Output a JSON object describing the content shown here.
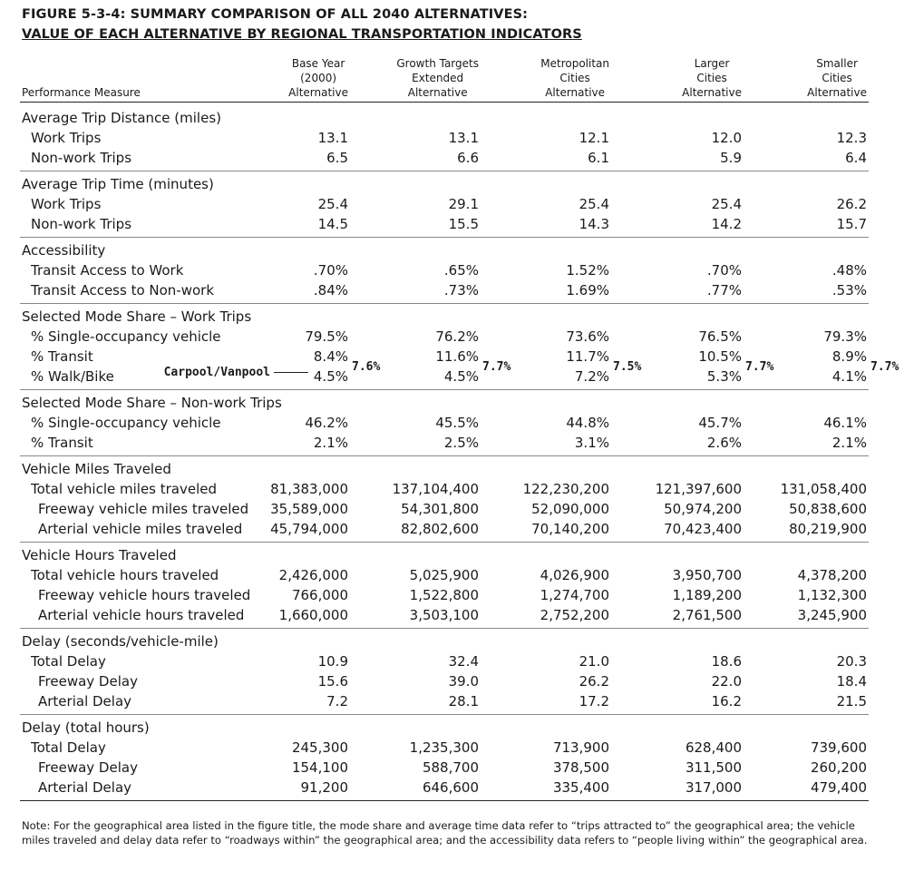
{
  "header": {
    "title_lines": [
      "FIGURE 5-3-4: SUMMARY COMPARISON OF ALL 2040 ALTERNATIVES:",
      "VALUE OF EACH ALTERNATIVE BY REGIONAL TRANSPORTATION INDICATORS"
    ]
  },
  "table": {
    "measure_header": "Performance Measure",
    "columns": [
      [
        "Base Year",
        "(2000)",
        "Alternative"
      ],
      [
        "Growth Targets",
        "Extended",
        "Alternative"
      ],
      [
        "Metropolitan",
        "Cities",
        "Alternative"
      ],
      [
        "Larger",
        "Cities",
        "Alternative"
      ],
      [
        "Smaller",
        "Cities",
        "Alternative"
      ]
    ],
    "sections": [
      {
        "heading": "Average Trip Distance (miles)",
        "rows": [
          {
            "label": "Work Trips",
            "values": [
              "13.1",
              "13.1",
              "12.1",
              "12.0",
              "12.3"
            ]
          },
          {
            "label": "Non-work Trips",
            "values": [
              "6.5",
              "6.6",
              "6.1",
              "5.9",
              "6.4"
            ]
          }
        ]
      },
      {
        "heading": "Average Trip Time (minutes)",
        "rows": [
          {
            "label": "Work Trips",
            "values": [
              "25.4",
              "29.1",
              "25.4",
              "25.4",
              "26.2"
            ]
          },
          {
            "label": "Non-work Trips",
            "values": [
              "14.5",
              "15.5",
              "14.3",
              "14.2",
              "15.7"
            ]
          }
        ]
      },
      {
        "heading": "Accessibility",
        "rows": [
          {
            "label": "Transit Access to Work",
            "values": [
              ".70%",
              ".65%",
              "1.52%",
              ".70%",
              ".48%"
            ]
          },
          {
            "label": "Transit Access to Non-work",
            "values": [
              ".84%",
              ".73%",
              "1.69%",
              ".77%",
              ".53%"
            ]
          }
        ]
      },
      {
        "heading": "Selected Mode Share – Work Trips",
        "rows": [
          {
            "label": "% Single-occupancy vehicle",
            "values": [
              "79.5%",
              "76.2%",
              "73.6%",
              "76.5%",
              "79.3%"
            ]
          },
          {
            "label": "% Transit",
            "values": [
              "8.4%",
              "11.6%",
              "11.7%",
              "10.5%",
              "8.9%"
            ]
          },
          {
            "label": "% Walk/Bike",
            "values": [
              "4.5%",
              "4.5%",
              "7.2%",
              "5.3%",
              "4.1%"
            ]
          }
        ],
        "annotation": {
          "label": "Carpool/Vanpool",
          "values": [
            "7.6%",
            "7.7%",
            "7.5%",
            "7.7%",
            "7.7%"
          ]
        }
      },
      {
        "heading": "Selected Mode Share – Non-work Trips",
        "rows": [
          {
            "label": "% Single-occupancy vehicle",
            "values": [
              "46.2%",
              "45.5%",
              "44.8%",
              "45.7%",
              "46.1%"
            ]
          },
          {
            "label": "% Transit",
            "values": [
              "2.1%",
              "2.5%",
              "3.1%",
              "2.6%",
              "2.1%"
            ]
          }
        ]
      },
      {
        "heading": "Vehicle Miles Traveled",
        "rows": [
          {
            "label": "Total vehicle miles traveled",
            "values": [
              "81,383,000",
              "137,104,400",
              "122,230,200",
              "121,397,600",
              "131,058,400"
            ]
          },
          {
            "label": "Freeway vehicle miles traveled",
            "values": [
              "35,589,000",
              "54,301,800",
              "52,090,000",
              "50,974,200",
              "50,838,600"
            ]
          },
          {
            "label": "Arterial vehicle miles traveled",
            "values": [
              "45,794,000",
              "82,802,600",
              "70,140,200",
              "70,423,400",
              "80,219,900"
            ]
          }
        ]
      },
      {
        "heading": "Vehicle Hours Traveled",
        "rows": [
          {
            "label": "Total vehicle hours traveled",
            "values": [
              "2,426,000",
              "5,025,900",
              "4,026,900",
              "3,950,700",
              "4,378,200"
            ]
          },
          {
            "label": "Freeway vehicle hours traveled",
            "values": [
              "766,000",
              "1,522,800",
              "1,274,700",
              "1,189,200",
              "1,132,300"
            ]
          },
          {
            "label": "Arterial vehicle hours traveled",
            "values": [
              "1,660,000",
              "3,503,100",
              "2,752,200",
              "2,761,500",
              "3,245,900"
            ]
          }
        ]
      },
      {
        "heading": "Delay (seconds/vehicle-mile)",
        "rows": [
          {
            "label": "Total Delay",
            "values": [
              "10.9",
              "32.4",
              "21.0",
              "18.6",
              "20.3"
            ]
          },
          {
            "label": "Freeway Delay",
            "values": [
              "15.6",
              "39.0",
              "26.2",
              "22.0",
              "18.4"
            ]
          },
          {
            "label": "Arterial Delay",
            "values": [
              "7.2",
              "28.1",
              "17.2",
              "16.2",
              "21.5"
            ]
          }
        ]
      },
      {
        "heading": "Delay (total hours)",
        "rows": [
          {
            "label": "Total Delay",
            "values": [
              "245,300",
              "1,235,300",
              "713,900",
              "628,400",
              "739,600"
            ]
          },
          {
            "label": "Freeway Delay",
            "values": [
              "154,100",
              "588,700",
              "378,500",
              "311,500",
              "260,200"
            ]
          },
          {
            "label": "Arterial Delay",
            "values": [
              "91,200",
              "646,600",
              "335,400",
              "317,000",
              "479,400"
            ]
          }
        ]
      }
    ]
  },
  "note": {
    "lines": [
      "Note:  For the geographical area listed in the figure title, the mode share and average time data refer to “trips attracted to” the geographical area; the vehicle",
      "miles traveled and delay data refer to “roadways within” the geographical area; and the accessibility data refers to “people living within” the geographical area."
    ]
  }
}
